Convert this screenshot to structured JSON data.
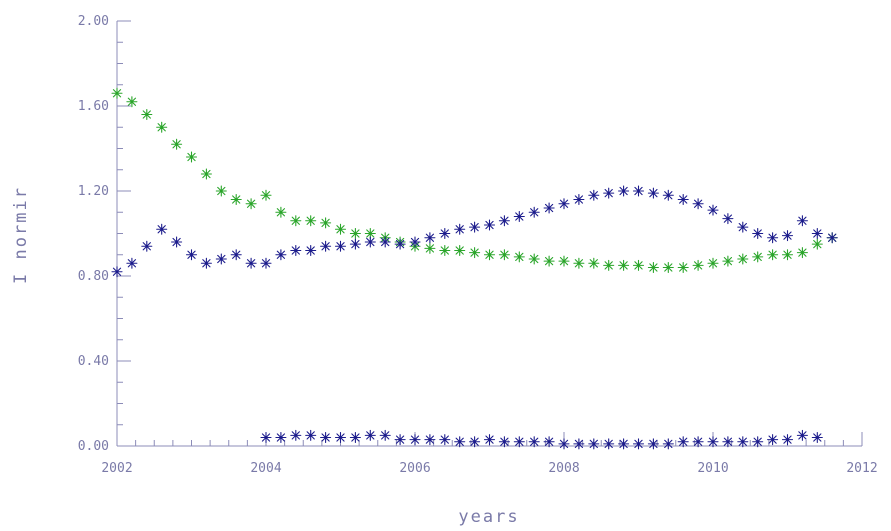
{
  "chart_data": {
    "type": "scatter",
    "title": "",
    "xlabel": "years",
    "ylabel": "I normir",
    "xlim": [
      2002,
      2012
    ],
    "ylim": [
      0.0,
      2.0
    ],
    "x_ticks": [
      2002,
      2004,
      2006,
      2008,
      2010,
      2012
    ],
    "x_tick_labels": [
      "2002",
      "2004",
      "2006",
      "2008",
      "2010",
      "2012"
    ],
    "y_ticks": [
      0.0,
      0.4,
      0.8,
      1.2,
      1.6,
      2.0
    ],
    "y_tick_labels": [
      "0.00",
      "0.40",
      "0.80",
      "1.20",
      "1.60",
      "2.00"
    ],
    "grid": false,
    "marker": "asterisk",
    "series": [
      {
        "color": "#2aa52a",
        "x": [
          2002.0,
          2002.2,
          2002.4,
          2002.6,
          2002.8,
          2003.0,
          2003.2,
          2003.4,
          2003.6,
          2003.8,
          2004.0,
          2004.2,
          2004.4,
          2004.6,
          2004.8,
          2005.0,
          2005.2,
          2005.4,
          2005.6,
          2005.8,
          2006.0,
          2006.2,
          2006.4,
          2006.6,
          2006.8,
          2007.0,
          2007.2,
          2007.4,
          2007.6,
          2007.8,
          2008.0,
          2008.2,
          2008.4,
          2008.6,
          2008.8,
          2009.0,
          2009.2,
          2009.4,
          2009.6,
          2009.8,
          2010.0,
          2010.2,
          2010.4,
          2010.6,
          2010.8,
          2011.0,
          2011.2,
          2011.4,
          2011.6
        ],
        "y": [
          1.66,
          1.62,
          1.56,
          1.5,
          1.42,
          1.36,
          1.28,
          1.2,
          1.16,
          1.14,
          1.18,
          1.1,
          1.06,
          1.06,
          1.05,
          1.02,
          1.0,
          1.0,
          0.98,
          0.96,
          0.94,
          0.93,
          0.92,
          0.92,
          0.91,
          0.9,
          0.9,
          0.89,
          0.88,
          0.87,
          0.87,
          0.86,
          0.86,
          0.85,
          0.85,
          0.85,
          0.84,
          0.84,
          0.84,
          0.85,
          0.86,
          0.87,
          0.88,
          0.89,
          0.9,
          0.9,
          0.91,
          0.95,
          0.98
        ]
      },
      {
        "color": "#1c1c8c",
        "x": [
          2002.0,
          2002.2,
          2002.4,
          2002.6,
          2002.8,
          2003.0,
          2003.2,
          2003.4,
          2003.6,
          2003.8,
          2004.0,
          2004.2,
          2004.4,
          2004.6,
          2004.8,
          2005.0,
          2005.2,
          2005.4,
          2005.6,
          2005.8,
          2006.0,
          2006.2,
          2006.4,
          2006.6,
          2006.8,
          2007.0,
          2007.2,
          2007.4,
          2007.6,
          2007.8,
          2008.0,
          2008.2,
          2008.4,
          2008.6,
          2008.8,
          2009.0,
          2009.2,
          2009.4,
          2009.6,
          2009.8,
          2010.0,
          2010.2,
          2010.4,
          2010.6,
          2010.8,
          2011.0,
          2011.2,
          2011.4,
          2011.6
        ],
        "y": [
          0.82,
          0.86,
          0.94,
          1.02,
          0.96,
          0.9,
          0.86,
          0.88,
          0.9,
          0.86,
          0.86,
          0.9,
          0.92,
          0.92,
          0.94,
          0.94,
          0.95,
          0.96,
          0.96,
          0.95,
          0.96,
          0.98,
          1.0,
          1.02,
          1.03,
          1.04,
          1.06,
          1.08,
          1.1,
          1.12,
          1.14,
          1.16,
          1.18,
          1.19,
          1.2,
          1.2,
          1.19,
          1.18,
          1.16,
          1.14,
          1.11,
          1.07,
          1.03,
          1.0,
          0.98,
          0.99,
          1.06,
          1.0,
          0.98
        ]
      },
      {
        "color": "#1c1c8c",
        "x": [
          2004.0,
          2004.2,
          2004.4,
          2004.6,
          2004.8,
          2005.0,
          2005.2,
          2005.4,
          2005.6,
          2005.8,
          2006.0,
          2006.2,
          2006.4,
          2006.6,
          2006.8,
          2007.0,
          2007.2,
          2007.4,
          2007.6,
          2007.8,
          2008.0,
          2008.2,
          2008.4,
          2008.6,
          2008.8,
          2009.0,
          2009.2,
          2009.4,
          2009.6,
          2009.8,
          2010.0,
          2010.2,
          2010.4,
          2010.6,
          2010.8,
          2011.0,
          2011.2,
          2011.4
        ],
        "y": [
          0.04,
          0.04,
          0.05,
          0.05,
          0.04,
          0.04,
          0.04,
          0.05,
          0.05,
          0.03,
          0.03,
          0.03,
          0.03,
          0.02,
          0.02,
          0.03,
          0.02,
          0.02,
          0.02,
          0.02,
          0.01,
          0.01,
          0.01,
          0.01,
          0.01,
          0.01,
          0.01,
          0.01,
          0.02,
          0.02,
          0.02,
          0.02,
          0.02,
          0.02,
          0.03,
          0.03,
          0.05,
          0.04
        ]
      }
    ]
  }
}
